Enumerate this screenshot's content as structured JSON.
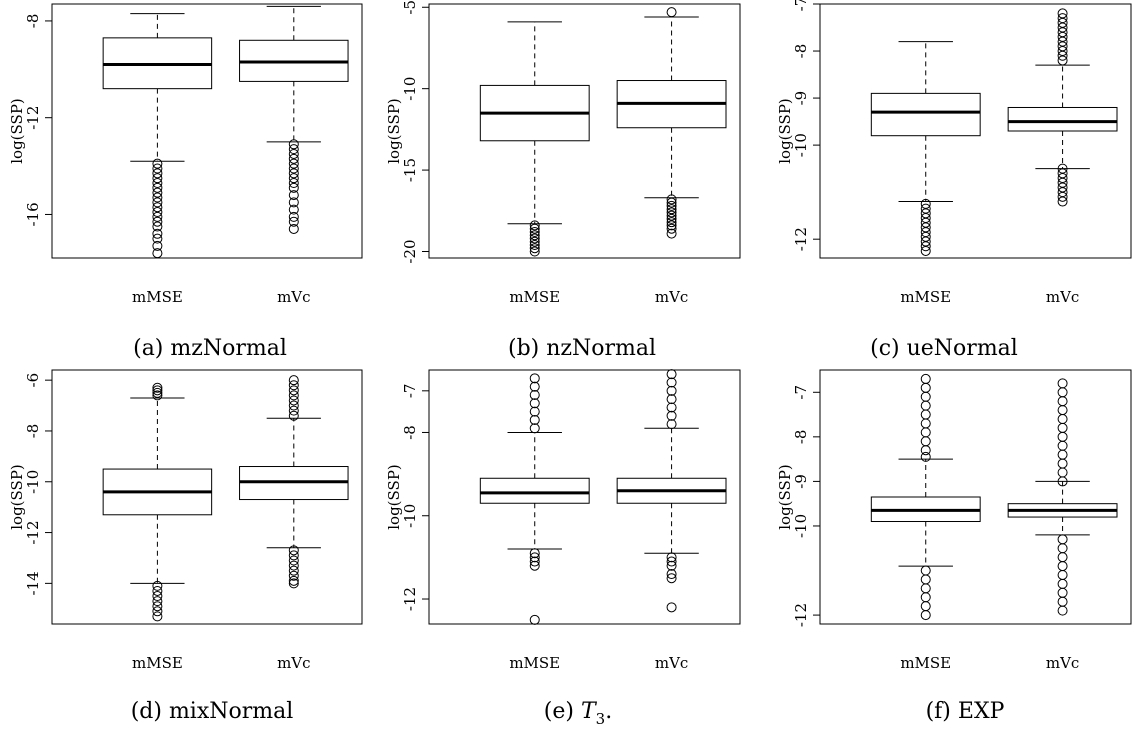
{
  "figure": {
    "captions": [
      "(a) mzNormal",
      "(b) nzNormal",
      "(c) ueNormal",
      "(d) mixNormal",
      "(e) T",
      "(f) EXP"
    ]
  },
  "chart_data": [
    {
      "type": "box",
      "caption": "(a) mzNormal",
      "ylabel": "log(SSP)",
      "ylim": [
        -17.8,
        -7.3
      ],
      "yticks": [
        -8,
        -12,
        -16
      ],
      "categories": [
        "mMSE",
        "mVc"
      ],
      "boxes": [
        {
          "name": "mMSE",
          "whisker_low": -13.8,
          "q1": -10.8,
          "median": -9.8,
          "q3": -8.7,
          "whisker_high": -7.7,
          "outliers": [
            -13.9,
            -14.1,
            -14.3,
            -14.5,
            -14.7,
            -14.9,
            -15.1,
            -15.3,
            -15.5,
            -15.7,
            -15.9,
            -16.1,
            -16.3,
            -16.5,
            -16.8,
            -17.0,
            -17.3,
            -17.6
          ]
        },
        {
          "name": "mVc",
          "whisker_low": -13.0,
          "q1": -10.5,
          "median": -9.7,
          "q3": -8.8,
          "whisker_high": -7.4,
          "outliers": [
            -13.1,
            -13.3,
            -13.5,
            -13.7,
            -13.9,
            -14.1,
            -14.3,
            -14.5,
            -14.7,
            -14.9,
            -15.2,
            -15.5,
            -15.8,
            -16.1,
            -16.3,
            -16.6
          ]
        }
      ]
    },
    {
      "type": "box",
      "caption": "(b) nzNormal",
      "ylabel": "log(SSP)",
      "ylim": [
        -20.4,
        -4.8
      ],
      "yticks": [
        -5,
        -10,
        -15,
        -20
      ],
      "categories": [
        "mMSE",
        "mVc"
      ],
      "boxes": [
        {
          "name": "mMSE",
          "whisker_low": -18.3,
          "q1": -13.2,
          "median": -11.5,
          "q3": -9.8,
          "whisker_high": -5.9,
          "outliers": [
            -18.4,
            -18.6,
            -18.8,
            -19.0,
            -19.2,
            -19.4,
            -19.6,
            -19.8,
            -20.0
          ]
        },
        {
          "name": "mVc",
          "whisker_low": -16.7,
          "q1": -12.4,
          "median": -10.9,
          "q3": -9.5,
          "whisker_high": -5.6,
          "outliers": [
            -5.3,
            -16.8,
            -17.0,
            -17.2,
            -17.4,
            -17.6,
            -17.8,
            -18.0,
            -18.2,
            -18.4,
            -18.6,
            -18.9
          ]
        }
      ]
    },
    {
      "type": "box",
      "caption": "(c) ueNormal",
      "ylabel": "log(SSP)",
      "ylim": [
        -12.4,
        -7.0
      ],
      "yticks": [
        -7,
        -8,
        -9,
        -10,
        -12
      ],
      "categories": [
        "mMSE",
        "mVc"
      ],
      "boxes": [
        {
          "name": "mMSE",
          "whisker_low": -11.2,
          "q1": -9.8,
          "median": -9.3,
          "q3": -8.9,
          "whisker_high": -7.8,
          "outliers": [
            -11.25,
            -11.35,
            -11.45,
            -11.55,
            -11.65,
            -11.75,
            -11.85,
            -11.95,
            -12.05,
            -12.15,
            -12.25
          ]
        },
        {
          "name": "mVc",
          "whisker_low": -10.5,
          "q1": -9.7,
          "median": -9.5,
          "q3": -9.2,
          "whisker_high": -8.3,
          "outliers": [
            -7.2,
            -7.3,
            -7.4,
            -7.5,
            -7.6,
            -7.7,
            -7.8,
            -7.9,
            -8.0,
            -8.1,
            -8.2,
            -10.5,
            -10.6,
            -10.7,
            -10.8,
            -10.9,
            -11.0,
            -11.1,
            -11.2
          ]
        }
      ]
    },
    {
      "type": "box",
      "caption": "(d) mixNormal",
      "ylabel": "log(SSP)",
      "ylim": [
        -15.6,
        -5.6
      ],
      "yticks": [
        -6,
        -8,
        -10,
        -12,
        -14
      ],
      "categories": [
        "mMSE",
        "mVc"
      ],
      "boxes": [
        {
          "name": "mMSE",
          "whisker_low": -14.0,
          "q1": -11.3,
          "median": -10.4,
          "q3": -9.5,
          "whisker_high": -6.7,
          "outliers": [
            -6.3,
            -6.4,
            -6.5,
            -6.6,
            -14.1,
            -14.3,
            -14.5,
            -14.7,
            -14.9,
            -15.1,
            -15.3
          ]
        },
        {
          "name": "mVc",
          "whisker_low": -12.6,
          "q1": -10.7,
          "median": -10.0,
          "q3": -9.4,
          "whisker_high": -7.5,
          "outliers": [
            -6.0,
            -6.2,
            -6.4,
            -6.6,
            -6.8,
            -7.0,
            -7.2,
            -7.4,
            -12.7,
            -12.9,
            -13.1,
            -13.3,
            -13.5,
            -13.7,
            -13.9,
            -14.0
          ]
        }
      ]
    },
    {
      "type": "box",
      "caption": "(e) T3.",
      "ylabel": "log(SSP)",
      "ylim": [
        -12.6,
        -6.5
      ],
      "yticks": [
        -7,
        -8,
        -10,
        -12
      ],
      "categories": [
        "mMSE",
        "mVc"
      ],
      "boxes": [
        {
          "name": "mMSE",
          "whisker_low": -10.8,
          "q1": -9.7,
          "median": -9.45,
          "q3": -9.1,
          "whisker_high": -8.0,
          "outliers": [
            -6.7,
            -6.9,
            -7.1,
            -7.3,
            -7.5,
            -7.7,
            -7.9,
            -10.9,
            -11.0,
            -11.1,
            -11.2,
            -12.5
          ]
        },
        {
          "name": "mVc",
          "whisker_low": -10.9,
          "q1": -9.7,
          "median": -9.4,
          "q3": -9.1,
          "whisker_high": -7.9,
          "outliers": [
            -6.6,
            -6.8,
            -7.0,
            -7.2,
            -7.4,
            -7.6,
            -7.8,
            -11.0,
            -11.1,
            -11.2,
            -11.4,
            -11.5,
            -12.2
          ]
        }
      ]
    },
    {
      "type": "box",
      "caption": "(f) EXP",
      "ylabel": "log(SSP)",
      "ylim": [
        -12.2,
        -6.5
      ],
      "yticks": [
        -7,
        -8,
        -9,
        -10,
        -12
      ],
      "categories": [
        "mMSE",
        "mVc"
      ],
      "boxes": [
        {
          "name": "mMSE",
          "whisker_low": -10.9,
          "q1": -9.9,
          "median": -9.65,
          "q3": -9.35,
          "whisker_high": -8.5,
          "outliers": [
            -6.7,
            -6.9,
            -7.1,
            -7.3,
            -7.5,
            -7.7,
            -7.9,
            -8.1,
            -8.3,
            -8.45,
            -11.0,
            -11.2,
            -11.4,
            -11.6,
            -11.8,
            -12.0
          ]
        },
        {
          "name": "mVc",
          "whisker_low": -10.2,
          "q1": -9.8,
          "median": -9.65,
          "q3": -9.5,
          "whisker_high": -9.0,
          "outliers": [
            -6.8,
            -7.0,
            -7.2,
            -7.4,
            -7.6,
            -7.8,
            -8.0,
            -8.2,
            -8.4,
            -8.6,
            -8.8,
            -9.0,
            -10.3,
            -10.5,
            -10.7,
            -10.9,
            -11.1,
            -11.3,
            -11.5,
            -11.7,
            -11.9
          ]
        }
      ]
    }
  ]
}
